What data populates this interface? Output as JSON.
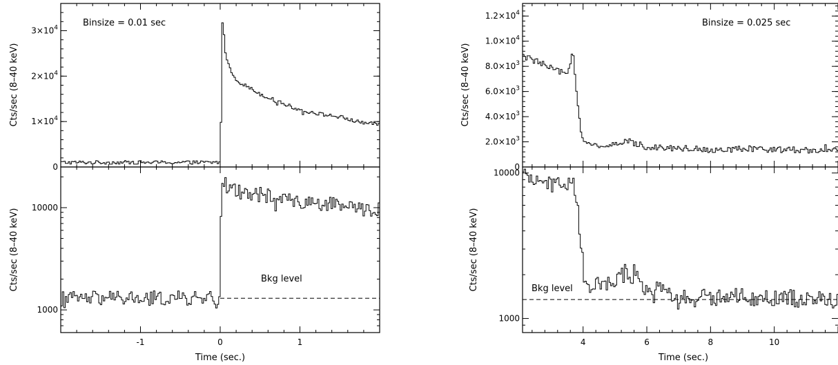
{
  "figure": {
    "xlabel": "Time (sec.)",
    "ylabel": "Cts/sec (8–40 keV)"
  },
  "chart_data": [
    {
      "type": "line",
      "panel": "left-top",
      "annotation": "Binsize = 0.01 sec",
      "xlim": [
        -2,
        2
      ],
      "ylim": [
        0,
        36000
      ],
      "y_scale": "linear",
      "x_ticks": [
        -1,
        0,
        1
      ],
      "y_ticks": [
        {
          "v": 0,
          "label": "0"
        },
        {
          "v": 10000,
          "label": "1×10",
          "exp": "4"
        },
        {
          "v": 20000,
          "label": "2×10",
          "exp": "4"
        },
        {
          "v": 30000,
          "label": "3×10",
          "exp": "4"
        }
      ],
      "series": [
        {
          "x": [
            -1.95,
            -1.5,
            -1.0,
            -0.5,
            -0.05,
            -0.01,
            0.0,
            0.02,
            0.05,
            0.1,
            0.2,
            0.3,
            0.5,
            0.7,
            1.0,
            1.3,
            1.5,
            1.7,
            1.9
          ],
          "values": [
            1000,
            1000,
            1000,
            1000,
            1000,
            1000,
            10000,
            33000,
            26000,
            22000,
            19000,
            18000,
            16000,
            14500,
            12500,
            11500,
            11000,
            10000,
            9500
          ]
        }
      ],
      "noise": 400
    },
    {
      "type": "line",
      "panel": "left-bottom",
      "annotation": "Bkg level",
      "xlim": [
        -2,
        2
      ],
      "ylim": [
        600,
        25000
      ],
      "y_scale": "log",
      "x_ticks": [
        -1,
        0,
        1
      ],
      "y_ticks": [
        {
          "v": 1000,
          "label": "1000"
        },
        {
          "v": 10000,
          "label": "10000"
        }
      ],
      "bkg_level": 1300,
      "series": [
        {
          "x": [
            -1.95,
            -1.5,
            -1.0,
            -0.5,
            -0.05,
            -0.01,
            0.0,
            0.02,
            0.05,
            0.1,
            0.2,
            0.3,
            0.5,
            0.7,
            1.0,
            1.3,
            1.5,
            1.7,
            1.9
          ],
          "values": [
            1300,
            1300,
            1300,
            1300,
            1300,
            1300,
            8000,
            20000,
            17000,
            15500,
            14500,
            14000,
            13500,
            12500,
            11500,
            11000,
            10500,
            10000,
            9500
          ]
        }
      ],
      "noise": 0.12
    },
    {
      "type": "line",
      "panel": "right-top",
      "annotation": "Binsize = 0.025 sec",
      "xlim": [
        2.1,
        12
      ],
      "ylim": [
        0,
        13000
      ],
      "y_scale": "linear",
      "x_ticks": [
        4,
        6,
        8,
        10
      ],
      "y_ticks": [
        {
          "v": 0,
          "label": "0"
        },
        {
          "v": 2000,
          "label": "2.0×10",
          "exp": "3"
        },
        {
          "v": 4000,
          "label": "4.0×10",
          "exp": "3"
        },
        {
          "v": 6000,
          "label": "6.0×10",
          "exp": "3"
        },
        {
          "v": 8000,
          "label": "8.0×10",
          "exp": "3"
        },
        {
          "v": 10000,
          "label": "1.0×10",
          "exp": "4"
        },
        {
          "v": 12000,
          "label": "1.2×10",
          "exp": "4"
        }
      ],
      "series": [
        {
          "x": [
            2.1,
            2.6,
            3.0,
            3.5,
            3.65,
            3.75,
            3.9,
            4.0,
            4.2,
            5.0,
            5.3,
            6.0,
            7.0,
            8.0,
            9.0,
            10.0,
            11.0,
            12.0
          ],
          "values": [
            8800,
            8300,
            7800,
            7300,
            9600,
            6500,
            3000,
            2000,
            1700,
            1700,
            2100,
            1600,
            1500,
            1400,
            1400,
            1400,
            1350,
            1300
          ]
        }
      ],
      "noise": 250
    },
    {
      "type": "line",
      "panel": "right-bottom",
      "annotation": "Bkg level",
      "xlim": [
        2.1,
        12
      ],
      "ylim": [
        800,
        11000
      ],
      "y_scale": "log",
      "x_ticks": [
        4,
        6,
        8,
        10
      ],
      "y_ticks": [
        {
          "v": 1000,
          "label": "1000"
        },
        {
          "v": 10000,
          "label": "10000"
        }
      ],
      "bkg_level": 1350,
      "series": [
        {
          "x": [
            2.1,
            2.6,
            3.0,
            3.5,
            3.65,
            3.75,
            3.9,
            4.0,
            4.2,
            5.0,
            5.3,
            6.0,
            7.0,
            8.0,
            9.0,
            10.0,
            11.0,
            12.0
          ],
          "values": [
            9300,
            8900,
            8500,
            8000,
            9800,
            7000,
            3200,
            1900,
            1700,
            1700,
            2100,
            1600,
            1450,
            1400,
            1400,
            1400,
            1350,
            1350
          ]
        }
      ],
      "noise": 0.1
    }
  ]
}
